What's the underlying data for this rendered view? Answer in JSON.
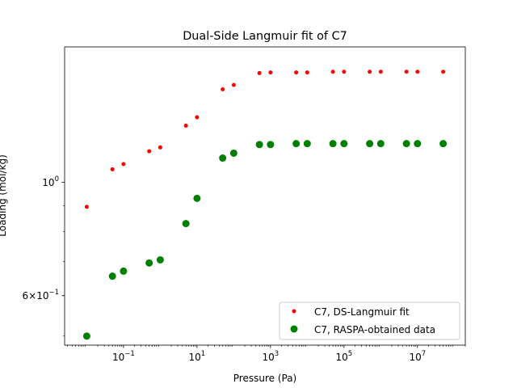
{
  "chart_data": {
    "type": "scatter",
    "title": "Dual-Side Langmuir fit of C7",
    "xlabel": "Pressure (Pa)",
    "ylabel": "Loading (mol/kg)",
    "xscale": "log",
    "yscale": "log",
    "xlim": [
      0.0025,
      200000000
    ],
    "ylim": [
      0.48,
      1.84
    ],
    "x_ticks": [
      {
        "value": 0.1,
        "base": "10",
        "exp": "−1"
      },
      {
        "value": 10,
        "base": "10",
        "exp": "1"
      },
      {
        "value": 1000,
        "base": "10",
        "exp": "3"
      },
      {
        "value": 100000,
        "base": "10",
        "exp": "5"
      },
      {
        "value": 10000000,
        "base": "10",
        "exp": "7"
      }
    ],
    "y_ticks": [
      {
        "value": 1.0,
        "base": "10",
        "exp": "0",
        "prefix": ""
      },
      {
        "value": 0.6,
        "base": "10",
        "exp": "−1",
        "prefix": "6×"
      }
    ],
    "y_minor_ticks": [
      0.5,
      0.6,
      0.7,
      0.8,
      0.9
    ],
    "grid": false,
    "legend_position": "lower-right",
    "series": [
      {
        "name": "C7, DS-Langmuir fit",
        "color": "#ff0000",
        "marker": "small-dot",
        "x": [
          0.01,
          0.05,
          0.1,
          0.5,
          1,
          5,
          10,
          50,
          100,
          500,
          1000,
          5000,
          10000,
          50000,
          100000,
          500000,
          1000000,
          5000000,
          10000000,
          50000000
        ],
        "y": [
          0.895,
          1.06,
          1.085,
          1.15,
          1.17,
          1.29,
          1.34,
          1.52,
          1.55,
          1.635,
          1.64,
          1.64,
          1.64,
          1.645,
          1.645,
          1.645,
          1.645,
          1.645,
          1.645,
          1.645
        ]
      },
      {
        "name": "C7, RASPA-obtained data",
        "color": "#008000",
        "marker": "large-dot",
        "x": [
          0.01,
          0.05,
          0.1,
          0.5,
          1,
          5,
          10,
          50,
          100,
          500,
          1000,
          5000,
          10000,
          50000,
          100000,
          500000,
          1000000,
          5000000,
          10000000,
          50000000
        ],
        "y": [
          0.5,
          0.655,
          0.67,
          0.695,
          0.705,
          0.83,
          0.93,
          1.115,
          1.14,
          1.185,
          1.185,
          1.19,
          1.19,
          1.19,
          1.19,
          1.19,
          1.19,
          1.19,
          1.19,
          1.19
        ]
      }
    ]
  }
}
